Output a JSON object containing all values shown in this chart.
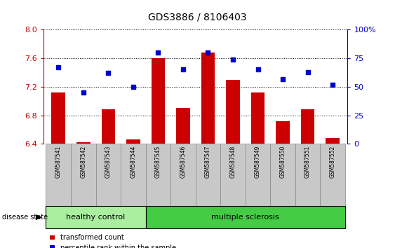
{
  "title": "GDS3886 / 8106403",
  "samples": [
    "GSM587541",
    "GSM587542",
    "GSM587543",
    "GSM587544",
    "GSM587545",
    "GSM587546",
    "GSM587547",
    "GSM587548",
    "GSM587549",
    "GSM587550",
    "GSM587551",
    "GSM587552"
  ],
  "bar_values": [
    7.12,
    6.42,
    6.88,
    6.46,
    7.6,
    6.9,
    7.68,
    7.3,
    7.12,
    6.72,
    6.88,
    6.48
  ],
  "percentile_values": [
    67,
    45,
    62,
    50,
    80,
    65,
    80,
    74,
    65,
    57,
    63,
    52
  ],
  "ylim": [
    6.4,
    8.0
  ],
  "yticks": [
    6.4,
    6.8,
    7.2,
    7.6,
    8.0
  ],
  "y2lim": [
    0,
    100
  ],
  "y2ticks": [
    0,
    25,
    50,
    75,
    100
  ],
  "y2ticklabels": [
    "0",
    "25",
    "50",
    "75",
    "100%"
  ],
  "bar_color": "#cc0000",
  "percentile_color": "#0000cc",
  "healthy_control_count": 4,
  "group_labels": [
    "healthy control",
    "multiple sclerosis"
  ],
  "hc_color": "#aaeea0",
  "ms_color": "#44cc44",
  "legend_items": [
    "transformed count",
    "percentile rank within the sample"
  ],
  "tick_label_color": "#cc0000",
  "y2_tick_color": "#0000cc",
  "grid_color": "#000000",
  "xlabel_area_color": "#c8c8c8",
  "xlabel_border_color": "#888888"
}
